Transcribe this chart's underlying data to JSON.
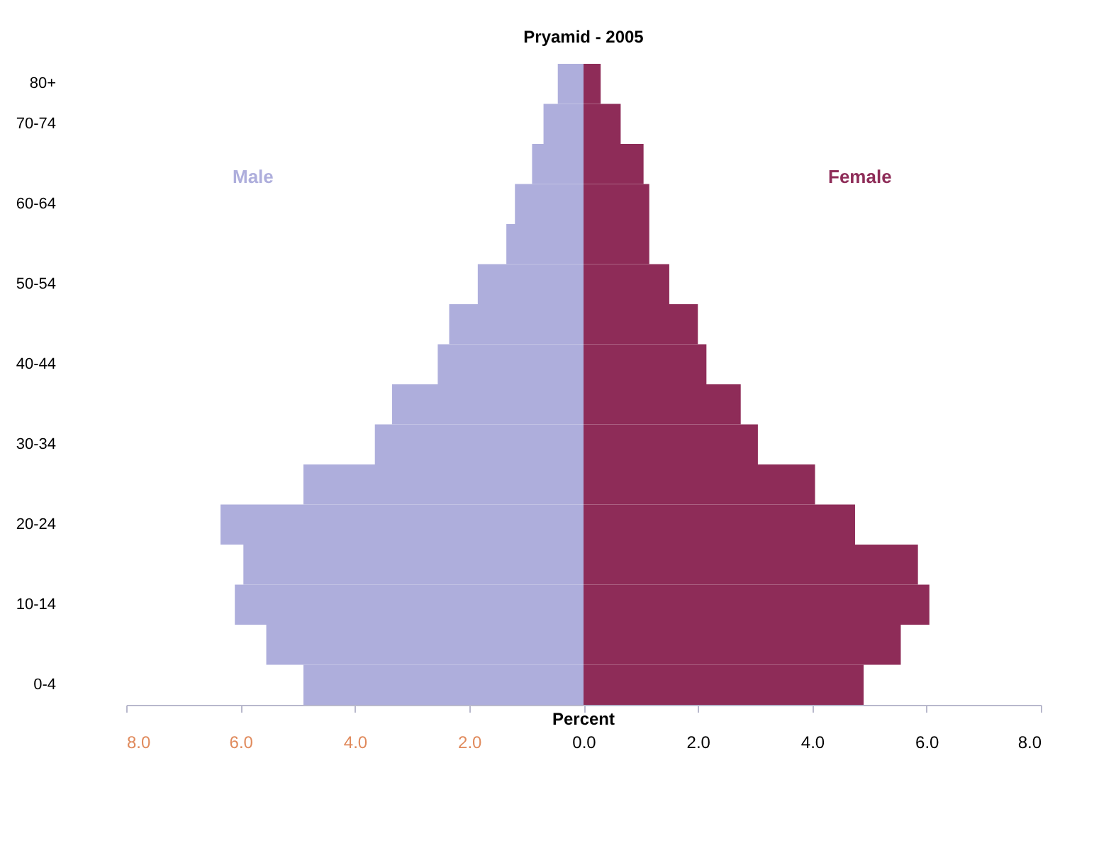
{
  "chart_data": {
    "type": "bar",
    "orientation": "horizontal",
    "title": "Pryamid  -  2005",
    "xlabel": "Percent",
    "categories": [
      "80+",
      "70-74",
      null,
      "60-64",
      null,
      "50-54",
      null,
      "40-44",
      null,
      "30-34",
      null,
      "20-24",
      null,
      "10-14",
      null,
      "0-4"
    ],
    "series": [
      {
        "name": "Male",
        "color": "#aeaedc",
        "values": [
          -0.45,
          -0.7,
          -0.9,
          -1.2,
          -1.35,
          -1.85,
          -2.35,
          -2.55,
          -3.35,
          -3.65,
          -4.9,
          -6.35,
          -5.95,
          -6.1,
          -5.55,
          -4.9
        ]
      },
      {
        "name": "Female",
        "color": "#8e2c58",
        "values": [
          0.3,
          0.65,
          1.05,
          1.15,
          1.15,
          1.5,
          2.0,
          2.15,
          2.75,
          3.05,
          4.05,
          4.75,
          5.85,
          6.05,
          5.55,
          4.9
        ]
      }
    ],
    "xlim": [
      -8,
      8
    ],
    "xticks": [
      {
        "value": -8,
        "label": "8.0"
      },
      {
        "value": -6,
        "label": "6.0"
      },
      {
        "value": -4,
        "label": "4.0"
      },
      {
        "value": -2,
        "label": "2.0"
      },
      {
        "value": 0,
        "label": "0.0"
      },
      {
        "value": 2,
        "label": "2.0"
      },
      {
        "value": 4,
        "label": "4.0"
      },
      {
        "value": 6,
        "label": "6.0"
      },
      {
        "value": 8,
        "label": "8.0"
      }
    ],
    "stacked": true,
    "grid": false,
    "legend": false
  }
}
